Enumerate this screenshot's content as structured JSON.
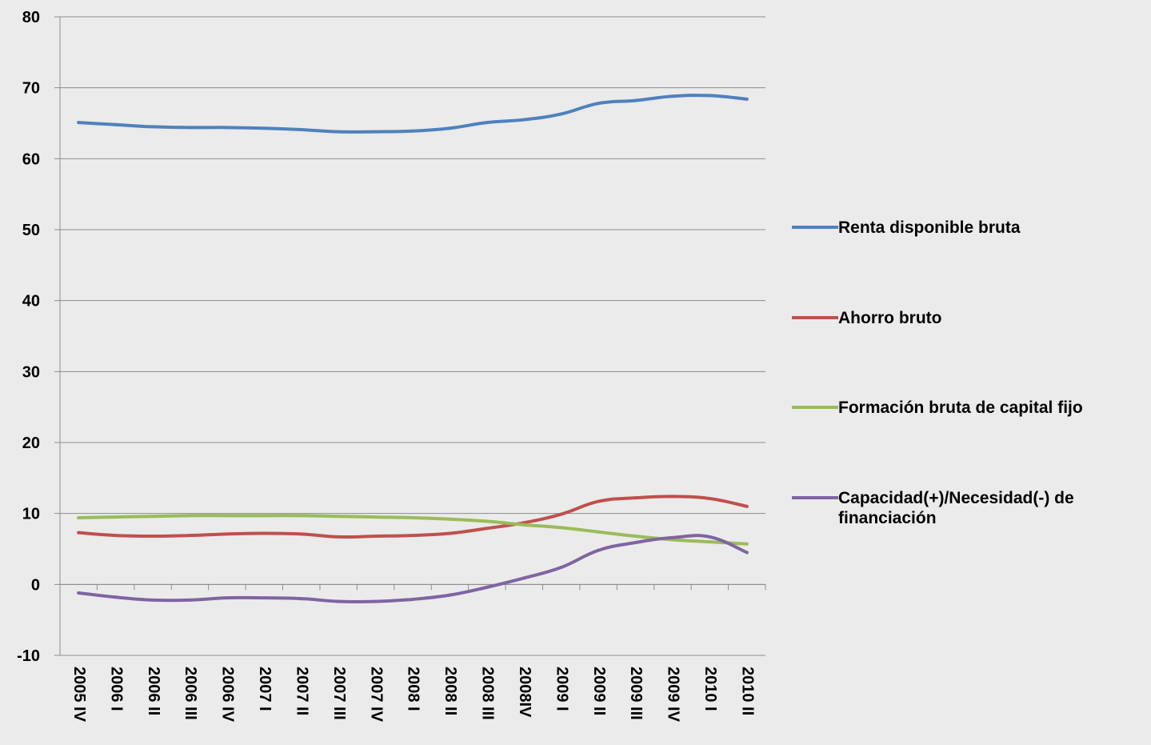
{
  "chart_data": {
    "type": "line",
    "title": "",
    "xlabel": "",
    "ylabel": "",
    "ylim": [
      -10,
      80
    ],
    "yticks": [
      -10,
      0,
      10,
      20,
      30,
      40,
      50,
      60,
      70,
      80
    ],
    "ytick_labels": [
      "-10",
      "0",
      "10",
      "20",
      "30",
      "40",
      "50",
      "60",
      "70",
      "80"
    ],
    "grid": true,
    "legend_position": "right",
    "categories": [
      "2005 IV",
      "2006 I",
      "2006 II",
      "2006 III",
      "2006 IV",
      "2007 I",
      "2007 II",
      "2007 III",
      "2007 IV",
      "2008 I",
      "2008 II",
      "2008 III",
      "2008IV",
      "2009 I",
      "2009 II",
      "2009 III",
      "2009 IV",
      "2010 I",
      "2010 II"
    ],
    "series": [
      {
        "name": "Renta disponible bruta",
        "color": "#4f81bd",
        "values": [
          65.1,
          64.8,
          64.5,
          64.4,
          64.4,
          64.3,
          64.1,
          63.8,
          63.8,
          63.9,
          64.3,
          65.1,
          65.5,
          66.3,
          67.8,
          68.2,
          68.8,
          68.9,
          68.4
        ]
      },
      {
        "name": "Ahorro bruto",
        "color": "#c0504d",
        "values": [
          7.3,
          6.9,
          6.8,
          6.9,
          7.1,
          7.2,
          7.1,
          6.7,
          6.8,
          6.9,
          7.2,
          7.9,
          8.7,
          9.9,
          11.7,
          12.2,
          12.4,
          12.1,
          11.0
        ]
      },
      {
        "name": "Formación bruta de capital fijo",
        "color": "#9bbb59",
        "values": [
          9.4,
          9.5,
          9.6,
          9.7,
          9.7,
          9.7,
          9.7,
          9.6,
          9.5,
          9.4,
          9.2,
          8.9,
          8.4,
          8.0,
          7.4,
          6.8,
          6.3,
          6.0,
          5.7
        ]
      },
      {
        "name": "Capacidad(+)/Necesidad(-) de financiación",
        "color": "#8064a2",
        "values": [
          -1.2,
          -1.8,
          -2.2,
          -2.2,
          -1.9,
          -1.9,
          -2.0,
          -2.4,
          -2.4,
          -2.1,
          -1.5,
          -0.4,
          0.9,
          2.4,
          4.8,
          5.9,
          6.6,
          6.7,
          4.5
        ]
      }
    ]
  }
}
